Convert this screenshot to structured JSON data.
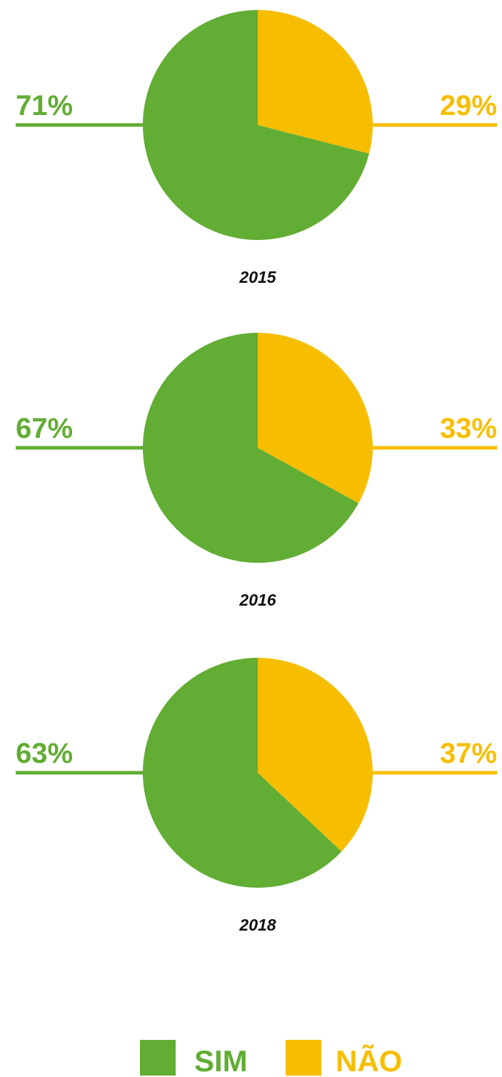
{
  "chart_data": [
    {
      "type": "pie",
      "title": "2015",
      "categories": [
        "SIM",
        "NÃO"
      ],
      "values": [
        71,
        29
      ],
      "value_labels": [
        "71%",
        "29%"
      ],
      "colors": [
        "#62ad34",
        "#f7be00"
      ]
    },
    {
      "type": "pie",
      "title": "2016",
      "categories": [
        "SIM",
        "NÃO"
      ],
      "values": [
        67,
        33
      ],
      "value_labels": [
        "67%",
        "33%"
      ],
      "colors": [
        "#62ad34",
        "#f7be00"
      ]
    },
    {
      "type": "pie",
      "title": "2018",
      "categories": [
        "SIM",
        "NÃO"
      ],
      "values": [
        63,
        37
      ],
      "value_labels": [
        "63%",
        "37%"
      ],
      "colors": [
        "#62ad34",
        "#f7be00"
      ]
    }
  ]
}
